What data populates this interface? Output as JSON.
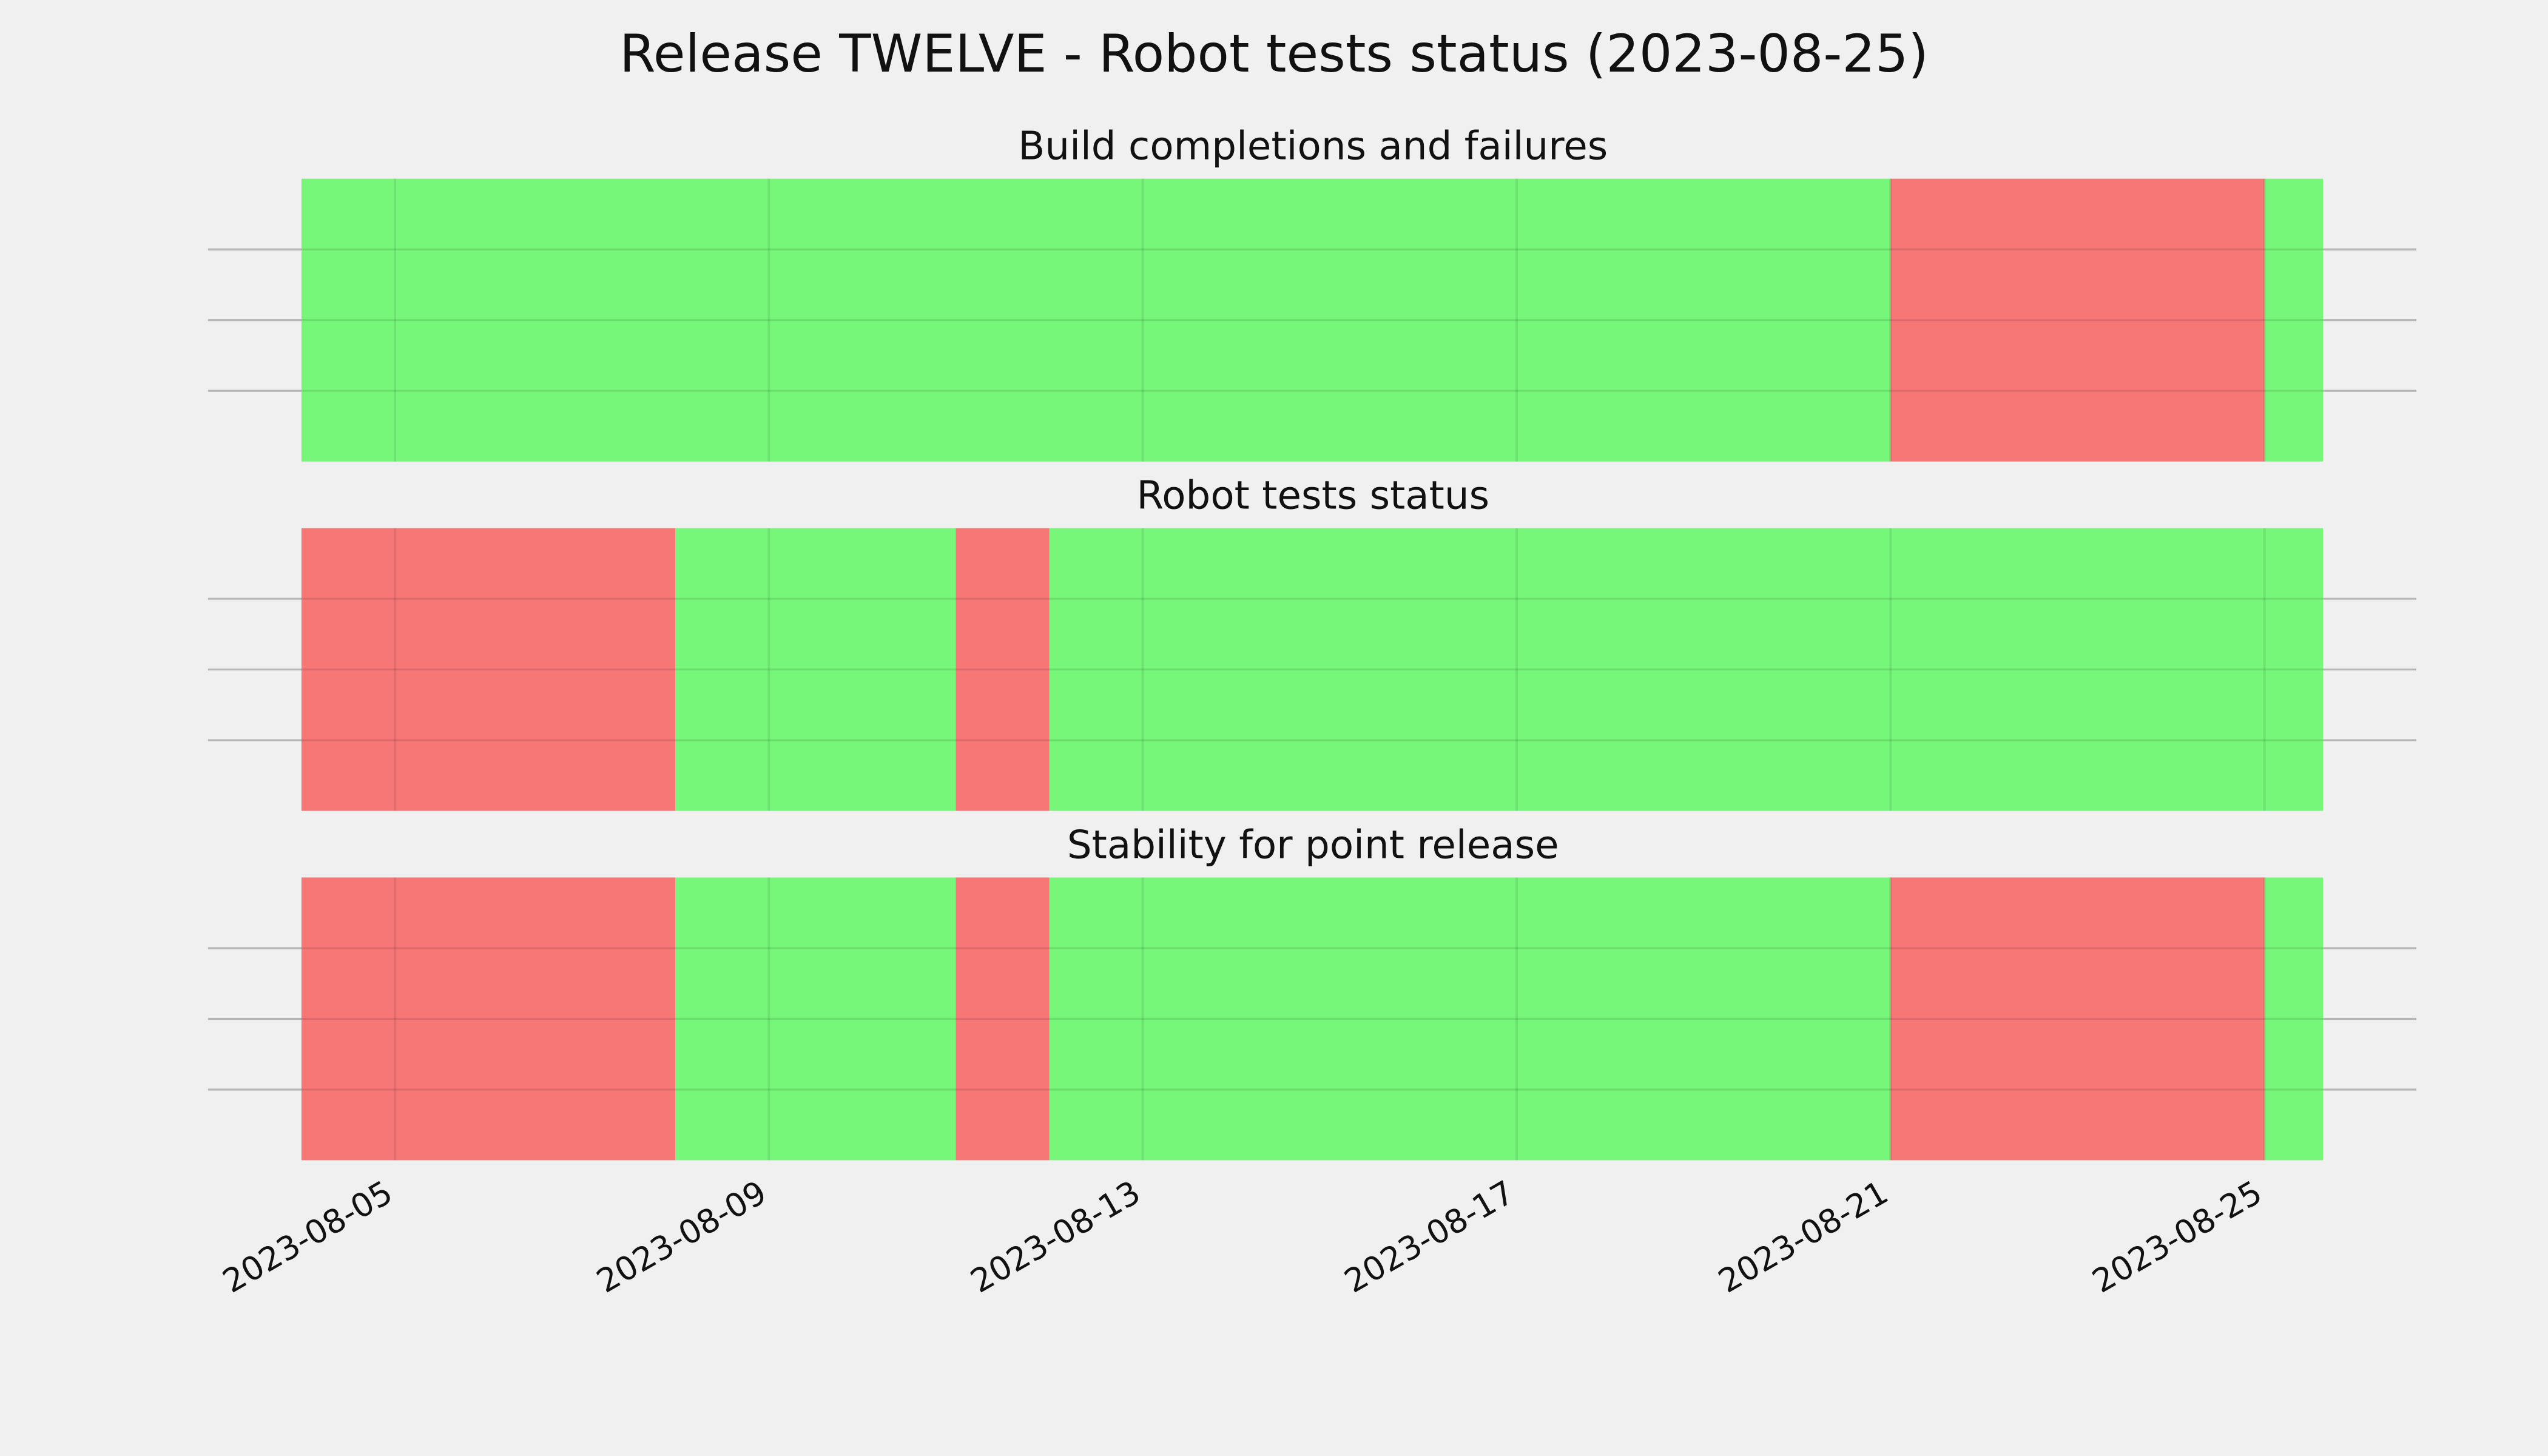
{
  "title": "Release TWELVE - Robot tests status (2023-08-25)",
  "chart_data": [
    {
      "type": "timeline",
      "title": "Build completions and failures",
      "spans": {
        "start": [
          "2023-08-04",
          "2023-08-21",
          "2023-08-25"
        ],
        "end": [
          "2023-08-21",
          "2023-08-25",
          "2023-08-25T15:00"
        ],
        "colors": [
          "#76f779",
          "#f77777",
          "#76f779"
        ]
      },
      "xlim": [
        "2023-08-03",
        "2023-08-26T15:00"
      ],
      "xticks": [
        "2023-08-05",
        "2023-08-09",
        "2023-08-13",
        "2023-08-17",
        "2023-08-21",
        "2023-08-25"
      ],
      "ylim": [
        0,
        1
      ],
      "yticks": [
        0.25,
        0.5,
        0.75
      ],
      "grid": true,
      "show_xtick_labels": false
    },
    {
      "type": "timeline",
      "title": "Robot tests status",
      "spans": {
        "start": [
          "2023-08-04",
          "2023-08-08",
          "2023-08-11",
          "2023-08-12"
        ],
        "end": [
          "2023-08-08",
          "2023-08-11",
          "2023-08-12",
          "2023-08-25T15:00"
        ],
        "colors": [
          "#f77777",
          "#76f779",
          "#f77777",
          "#76f779"
        ]
      },
      "xlim": [
        "2023-08-03",
        "2023-08-26T15:00"
      ],
      "xticks": [
        "2023-08-05",
        "2023-08-09",
        "2023-08-13",
        "2023-08-17",
        "2023-08-21",
        "2023-08-25"
      ],
      "ylim": [
        0,
        1
      ],
      "yticks": [
        0.25,
        0.5,
        0.75
      ],
      "grid": true,
      "show_xtick_labels": false
    },
    {
      "type": "timeline",
      "title": "Stability for point release",
      "spans": {
        "start": [
          "2023-08-04",
          "2023-08-08",
          "2023-08-11",
          "2023-08-12",
          "2023-08-21",
          "2023-08-25"
        ],
        "end": [
          "2023-08-08",
          "2023-08-11",
          "2023-08-12",
          "2023-08-21",
          "2023-08-25",
          "2023-08-25T15:00"
        ],
        "colors": [
          "#f77777",
          "#76f779",
          "#f77777",
          "#76f779",
          "#f77777",
          "#76f779"
        ]
      },
      "xlim": [
        "2023-08-03",
        "2023-08-26T15:00"
      ],
      "xticks": [
        "2023-08-05",
        "2023-08-09",
        "2023-08-13",
        "2023-08-17",
        "2023-08-21",
        "2023-08-25"
      ],
      "ylim": [
        0,
        1
      ],
      "yticks": [
        0.25,
        0.5,
        0.75
      ],
      "grid": true,
      "show_xtick_labels": true
    }
  ]
}
